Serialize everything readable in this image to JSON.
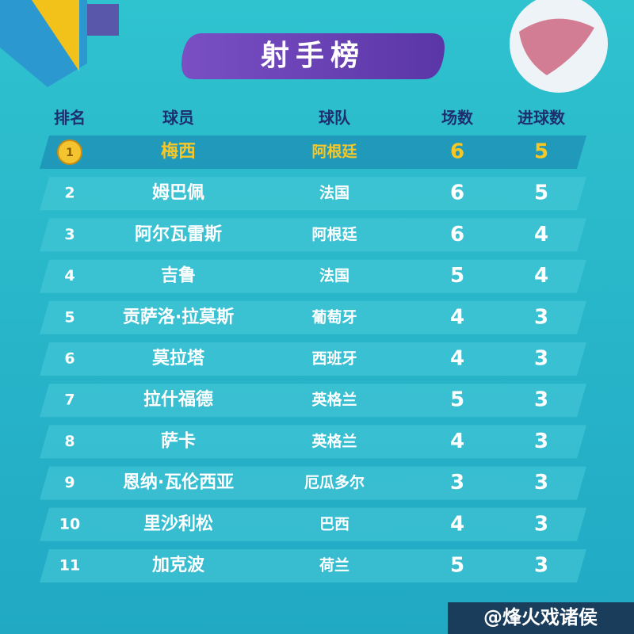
{
  "header": {
    "title": "射手榜"
  },
  "table": {
    "columns": [
      "排名",
      "球员",
      "球队",
      "场数",
      "进球数"
    ],
    "rows": [
      [
        "1",
        "梅西",
        "阿根廷",
        "6",
        "5"
      ],
      [
        "2",
        "姆巴佩",
        "法国",
        "6",
        "5"
      ],
      [
        "3",
        "阿尔瓦雷斯",
        "阿根廷",
        "6",
        "4"
      ],
      [
        "4",
        "吉鲁",
        "法国",
        "5",
        "4"
      ],
      [
        "5",
        "贡萨洛·拉莫斯",
        "葡萄牙",
        "4",
        "3"
      ],
      [
        "6",
        "莫拉塔",
        "西班牙",
        "4",
        "3"
      ],
      [
        "7",
        "拉什福德",
        "英格兰",
        "5",
        "3"
      ],
      [
        "8",
        "萨卡",
        "英格兰",
        "4",
        "3"
      ],
      [
        "9",
        "恩纳·瓦伦西亚",
        "厄瓜多尔",
        "3",
        "3"
      ],
      [
        "10",
        "里沙利松",
        "巴西",
        "4",
        "3"
      ],
      [
        "11",
        "加克波",
        "荷兰",
        "5",
        "3"
      ]
    ]
  },
  "footer": {
    "watermark": "@烽火戏诸侯"
  }
}
